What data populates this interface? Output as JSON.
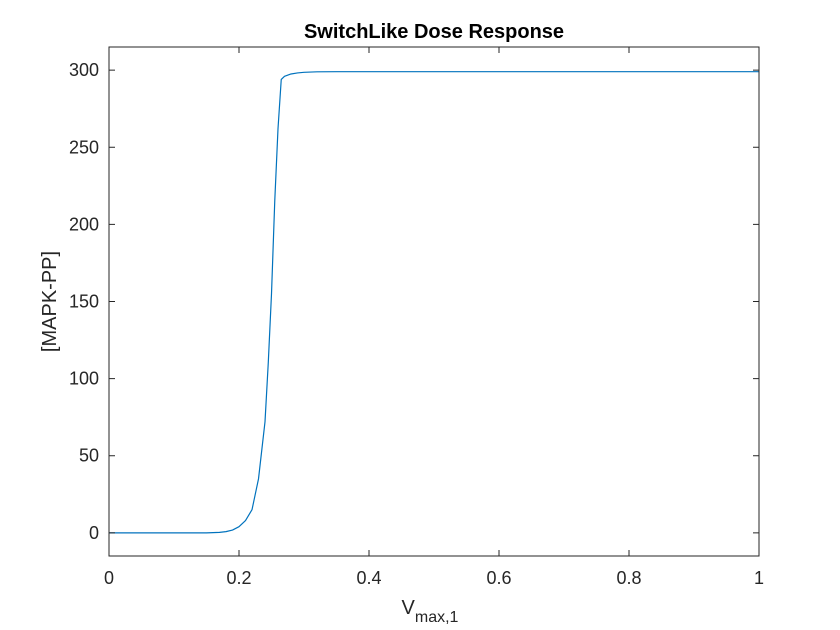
{
  "chart_data": {
    "type": "line",
    "title": "SwitchLike Dose Response",
    "xlabel": "V",
    "xlabel_subscript": "max,1",
    "ylabel": "[MAPK-PP]",
    "xlim": [
      0,
      1
    ],
    "ylim": [
      -15,
      315
    ],
    "xticks": [
      0,
      0.2,
      0.4,
      0.6,
      0.8,
      1
    ],
    "xtick_labels": [
      "0",
      "0.2",
      "0.4",
      "0.6",
      "0.8",
      "1"
    ],
    "yticks": [
      0,
      50,
      100,
      150,
      200,
      250,
      300
    ],
    "ytick_labels": [
      "0",
      "50",
      "100",
      "150",
      "200",
      "250",
      "300"
    ],
    "grid": false,
    "line_color": "#0072BD",
    "series": [
      {
        "x": [
          0,
          0.05,
          0.1,
          0.15,
          0.17,
          0.18,
          0.19,
          0.2,
          0.21,
          0.22,
          0.23,
          0.24,
          0.245,
          0.25,
          0.255,
          0.26,
          0.265,
          0.27,
          0.28,
          0.29,
          0.3,
          0.32,
          0.35,
          0.4,
          0.5,
          0.6,
          0.7,
          0.8,
          0.9,
          1.0
        ],
        "y": [
          0,
          0,
          0,
          0,
          0.3,
          0.8,
          1.8,
          4,
          8,
          15,
          35,
          72,
          110,
          155,
          215,
          262,
          294,
          296,
          297.5,
          298.2,
          298.6,
          298.9,
          299,
          299,
          299,
          299,
          299,
          299,
          299,
          299
        ]
      }
    ]
  }
}
